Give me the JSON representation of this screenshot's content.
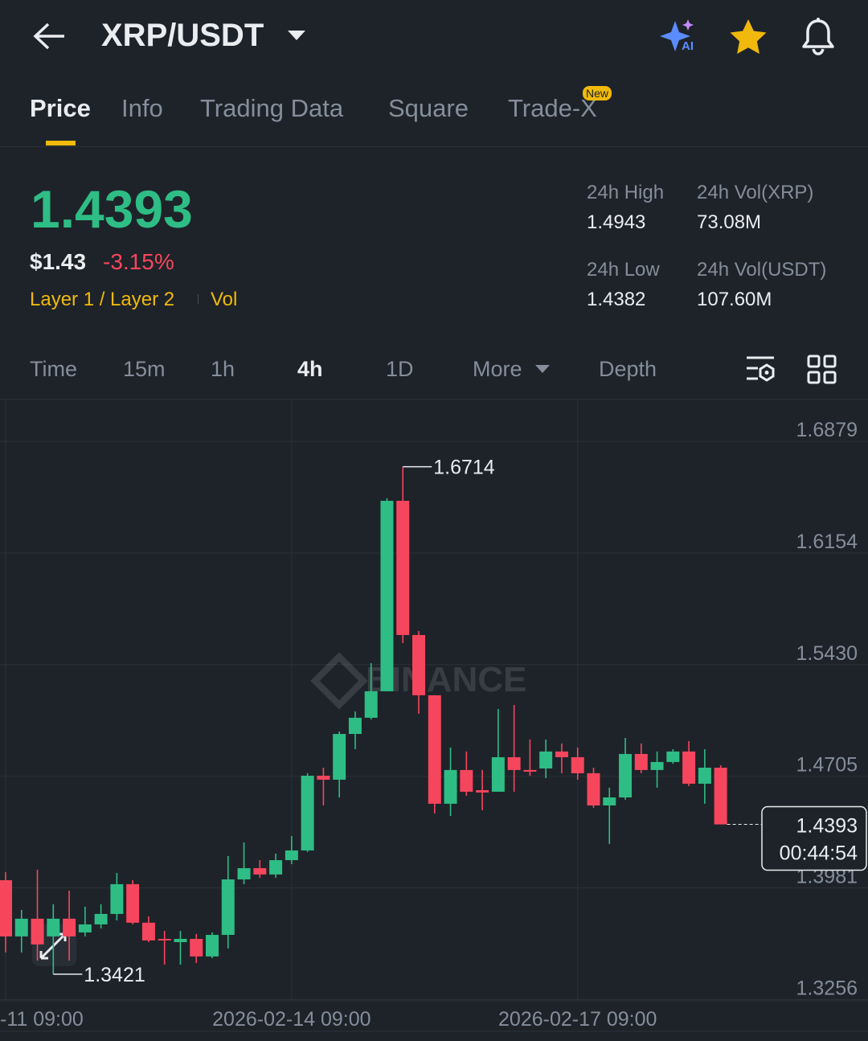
{
  "header": {
    "title": "XRP/USDT"
  },
  "tabs": {
    "items": [
      "Price",
      "Info",
      "Trading Data",
      "Square",
      "Trade-X"
    ],
    "active": 0,
    "badge": "New"
  },
  "ticker": {
    "price": "1.4393",
    "usd_price": "$1.43",
    "change": "-3.15%",
    "tags": [
      "Layer 1 / Layer 2",
      "Vol"
    ],
    "stats": [
      {
        "label": "24h High",
        "value": "1.4943"
      },
      {
        "label": "24h Vol(XRP)",
        "value": "73.08M"
      },
      {
        "label": "24h Low",
        "value": "1.4382"
      },
      {
        "label": "24h Vol(USDT)",
        "value": "107.60M"
      }
    ]
  },
  "intervals": {
    "items": [
      "Time",
      "15m",
      "1h",
      "4h",
      "1D",
      "More",
      "Depth"
    ],
    "active": 3
  },
  "chart_data": {
    "type": "candlestick",
    "categories": [
      "-11 09:00",
      null,
      null,
      null,
      null,
      null,
      null,
      null,
      null,
      null,
      null,
      null,
      null,
      null,
      null,
      null,
      null,
      null,
      "2026-02-14 09:00",
      null,
      null,
      null,
      null,
      null,
      null,
      null,
      null,
      null,
      null,
      null,
      null,
      null,
      null,
      null,
      null,
      null,
      "2026-02-17 09:00",
      null,
      null,
      null,
      null,
      null,
      null,
      null,
      null,
      null
    ],
    "open": [
      1.4031,
      1.3666,
      1.3781,
      1.3666,
      1.3781,
      1.3692,
      1.3744,
      1.3812,
      1.4005,
      1.3755,
      1.365,
      1.3629,
      1.365,
      1.3536,
      1.3676,
      1.4036,
      1.4109,
      1.4068,
      1.4161,
      1.4224,
      1.4709,
      1.4683,
      1.498,
      1.5085,
      1.5257,
      1.6493,
      1.5622,
      1.5231,
      1.4527,
      1.4746,
      1.4615,
      1.4605,
      1.4829,
      1.4746,
      1.4756,
      1.4866,
      1.4829,
      1.4725,
      1.4516,
      1.4568,
      1.485,
      1.4746,
      1.4798,
      1.4866,
      1.4657,
      1.4761
    ],
    "high": [
      1.4083,
      1.3838,
      1.4099,
      1.3875,
      1.3963,
      1.3859,
      1.3875,
      1.4078,
      1.4031,
      1.3796,
      1.3702,
      1.3702,
      1.3682,
      1.3692,
      1.4188,
      1.4276,
      1.4161,
      1.4203,
      1.4318,
      1.4725,
      1.4761,
      1.4996,
      1.5126,
      1.5439,
      1.6509,
      1.6714,
      1.5648,
      1.5231,
      1.4892,
      1.4866,
      1.4746,
      1.5142,
      1.5168,
      1.4944,
      1.4944,
      1.4918,
      1.4892,
      1.4761,
      1.4631,
      1.4954,
      1.4918,
      1.4866,
      1.4881,
      1.4933,
      1.4881,
      1.4777
    ],
    "low": [
      1.3562,
      1.3562,
      1.3509,
      1.3421,
      1.3509,
      1.3666,
      1.3718,
      1.377,
      1.3744,
      1.3629,
      1.3483,
      1.3483,
      1.3494,
      1.3525,
      1.3588,
      1.4005,
      1.4047,
      1.4047,
      1.4135,
      1.4214,
      1.4516,
      1.4568,
      1.4881,
      1.5074,
      1.5257,
      1.557,
      1.5111,
      1.4464,
      1.4448,
      1.4579,
      1.4485,
      1.4605,
      1.4605,
      1.4709,
      1.4693,
      1.4725,
      1.4683,
      1.4501,
      1.4266,
      1.4553,
      1.4725,
      1.4631,
      1.4787,
      1.4641,
      1.4527,
      1.4393
    ],
    "close": [
      1.3666,
      1.3781,
      1.3614,
      1.3781,
      1.3666,
      1.3744,
      1.3812,
      1.4005,
      1.3755,
      1.364,
      1.364,
      1.365,
      1.3536,
      1.3676,
      1.4036,
      1.4109,
      1.4068,
      1.4161,
      1.4224,
      1.4709,
      1.4683,
      1.498,
      1.5085,
      1.5257,
      1.6493,
      1.5622,
      1.5231,
      1.4527,
      1.4746,
      1.4605,
      1.46,
      1.4829,
      1.4746,
      1.4735,
      1.4866,
      1.4829,
      1.4725,
      1.4516,
      1.4568,
      1.485,
      1.4746,
      1.4798,
      1.4866,
      1.4657,
      1.4761,
      1.4393
    ],
    "up_color": "#2ebd85",
    "down_color": "#f6465d",
    "ylim": [
      1.3256,
      1.6879
    ],
    "yticks": [
      1.6879,
      1.6154,
      {
        "value": 1.543,
        "label": "1.5430"
      },
      1.4705,
      1.3981,
      1.3256
    ],
    "grid": true,
    "watermark": "BINANCE",
    "countdown": "00:44:54"
  }
}
